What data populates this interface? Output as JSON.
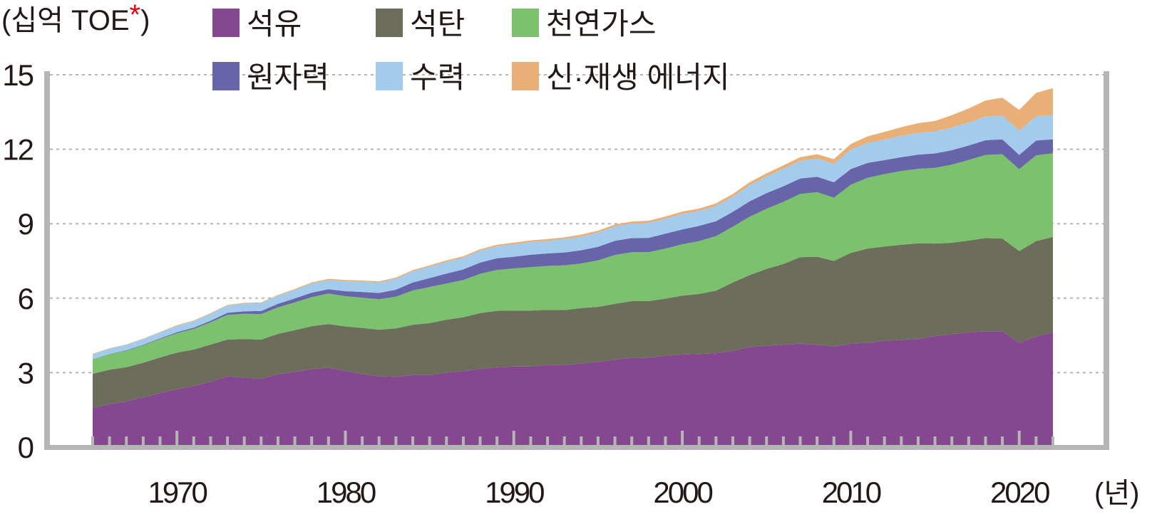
{
  "chart_data": {
    "type": "area",
    "stacked": true,
    "unit_label": "(십억 TOE",
    "unit_asterisk": "*",
    "unit_close": ")",
    "x_unit_label": "(년)",
    "xlim": [
      1965,
      2022
    ],
    "ylim": [
      0,
      15
    ],
    "yticks": [
      "0",
      "3",
      "6",
      "9",
      "12",
      "15"
    ],
    "ytick_values": [
      0,
      3,
      6,
      9,
      12,
      15
    ],
    "xticks": [
      "1970",
      "1980",
      "1990",
      "2000",
      "2010",
      "2020"
    ],
    "xtick_values": [
      1970,
      1980,
      1990,
      2000,
      2010,
      2020
    ],
    "grid": "horizontal dotted",
    "legend_placement": "top",
    "x": [
      1965,
      1966,
      1967,
      1968,
      1969,
      1970,
      1971,
      1972,
      1973,
      1974,
      1975,
      1976,
      1977,
      1978,
      1979,
      1980,
      1981,
      1982,
      1983,
      1984,
      1985,
      1986,
      1987,
      1988,
      1989,
      1990,
      1991,
      1992,
      1993,
      1994,
      1995,
      1996,
      1997,
      1998,
      1999,
      2000,
      2001,
      2002,
      2003,
      2004,
      2005,
      2006,
      2007,
      2008,
      2009,
      2010,
      2011,
      2012,
      2013,
      2014,
      2015,
      2016,
      2017,
      2018,
      2019,
      2020,
      2021,
      2022
    ],
    "series": [
      {
        "name": "석유",
        "color": "#864791",
        "values": [
          1.58,
          1.72,
          1.84,
          2.0,
          2.17,
          2.33,
          2.46,
          2.63,
          2.85,
          2.8,
          2.75,
          2.93,
          3.03,
          3.15,
          3.2,
          3.06,
          2.95,
          2.85,
          2.83,
          2.9,
          2.9,
          3.0,
          3.06,
          3.15,
          3.22,
          3.25,
          3.25,
          3.3,
          3.3,
          3.37,
          3.43,
          3.52,
          3.6,
          3.61,
          3.68,
          3.73,
          3.75,
          3.78,
          3.88,
          4.03,
          4.08,
          4.13,
          4.17,
          4.12,
          4.05,
          4.17,
          4.2,
          4.28,
          4.32,
          4.36,
          4.47,
          4.55,
          4.62,
          4.67,
          4.67,
          4.2,
          4.45,
          4.62
        ]
      },
      {
        "name": "석탄",
        "color": "#6c6d5b",
        "values": [
          1.37,
          1.4,
          1.38,
          1.4,
          1.44,
          1.48,
          1.47,
          1.5,
          1.48,
          1.55,
          1.58,
          1.63,
          1.68,
          1.72,
          1.76,
          1.8,
          1.85,
          1.88,
          1.95,
          2.03,
          2.1,
          2.13,
          2.17,
          2.25,
          2.27,
          2.25,
          2.25,
          2.23,
          2.22,
          2.23,
          2.22,
          2.25,
          2.28,
          2.27,
          2.3,
          2.37,
          2.42,
          2.52,
          2.75,
          2.9,
          3.1,
          3.25,
          3.48,
          3.55,
          3.45,
          3.65,
          3.8,
          3.8,
          3.83,
          3.85,
          3.73,
          3.68,
          3.7,
          3.75,
          3.73,
          3.7,
          3.85,
          3.85
        ]
      },
      {
        "name": "천연가스",
        "color": "#7cc16d",
        "values": [
          0.58,
          0.62,
          0.66,
          0.7,
          0.74,
          0.78,
          0.83,
          0.9,
          1.0,
          1.02,
          1.03,
          1.07,
          1.12,
          1.17,
          1.23,
          1.22,
          1.22,
          1.23,
          1.28,
          1.38,
          1.45,
          1.46,
          1.5,
          1.58,
          1.65,
          1.7,
          1.75,
          1.77,
          1.8,
          1.8,
          1.87,
          1.97,
          1.97,
          1.97,
          2.02,
          2.07,
          2.13,
          2.2,
          2.25,
          2.35,
          2.42,
          2.5,
          2.55,
          2.6,
          2.55,
          2.75,
          2.85,
          2.92,
          2.97,
          3.0,
          3.05,
          3.15,
          3.25,
          3.35,
          3.4,
          3.3,
          3.45,
          3.37
        ]
      },
      {
        "name": "원자력",
        "color": "#6764aa",
        "values": [
          0.01,
          0.01,
          0.02,
          0.02,
          0.03,
          0.04,
          0.05,
          0.06,
          0.08,
          0.1,
          0.12,
          0.14,
          0.16,
          0.18,
          0.17,
          0.2,
          0.23,
          0.25,
          0.28,
          0.32,
          0.36,
          0.4,
          0.43,
          0.45,
          0.47,
          0.47,
          0.5,
          0.5,
          0.52,
          0.53,
          0.55,
          0.57,
          0.57,
          0.58,
          0.6,
          0.6,
          0.61,
          0.6,
          0.6,
          0.62,
          0.63,
          0.63,
          0.62,
          0.62,
          0.62,
          0.63,
          0.6,
          0.56,
          0.56,
          0.57,
          0.58,
          0.58,
          0.58,
          0.59,
          0.6,
          0.57,
          0.6,
          0.56
        ]
      },
      {
        "name": "수력",
        "color": "#a2cbec",
        "values": [
          0.2,
          0.21,
          0.22,
          0.23,
          0.24,
          0.25,
          0.26,
          0.28,
          0.29,
          0.31,
          0.32,
          0.33,
          0.34,
          0.37,
          0.38,
          0.4,
          0.41,
          0.42,
          0.44,
          0.45,
          0.46,
          0.47,
          0.47,
          0.48,
          0.48,
          0.5,
          0.51,
          0.51,
          0.54,
          0.55,
          0.57,
          0.58,
          0.59,
          0.6,
          0.6,
          0.62,
          0.6,
          0.61,
          0.61,
          0.65,
          0.67,
          0.7,
          0.71,
          0.74,
          0.74,
          0.78,
          0.8,
          0.83,
          0.86,
          0.88,
          0.88,
          0.91,
          0.92,
          0.95,
          0.95,
          0.98,
          0.97,
          0.98
        ]
      },
      {
        "name": "신·재생 에너지",
        "color": "#e8b077",
        "values": [
          0.02,
          0.02,
          0.02,
          0.02,
          0.02,
          0.03,
          0.03,
          0.03,
          0.03,
          0.03,
          0.03,
          0.03,
          0.04,
          0.04,
          0.04,
          0.05,
          0.05,
          0.05,
          0.05,
          0.05,
          0.05,
          0.06,
          0.06,
          0.06,
          0.06,
          0.07,
          0.07,
          0.07,
          0.07,
          0.08,
          0.08,
          0.08,
          0.08,
          0.09,
          0.09,
          0.1,
          0.1,
          0.11,
          0.11,
          0.12,
          0.13,
          0.14,
          0.15,
          0.17,
          0.19,
          0.23,
          0.27,
          0.31,
          0.35,
          0.39,
          0.43,
          0.5,
          0.57,
          0.65,
          0.73,
          0.83,
          0.95,
          1.08
        ]
      }
    ]
  }
}
